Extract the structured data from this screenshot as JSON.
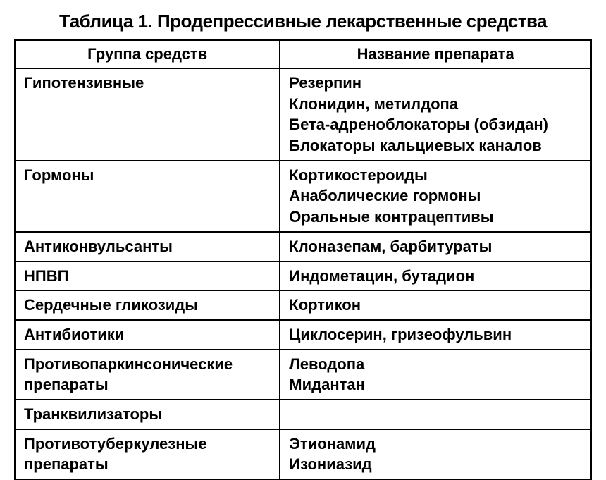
{
  "title": "Таблица 1. Продепрессивные лекарственные средства",
  "columns": [
    "Группа средств",
    "Название препарата"
  ],
  "rows": [
    {
      "group": "Гипотензивные",
      "drugs": "Резерпин\nКлонидин, метилдопа\nБета-адреноблокаторы (обзидан)\nБлокаторы кальциевых каналов"
    },
    {
      "group": "Гормоны",
      "drugs": "Кортикостероиды\nАнаболические гормоны\nОральные контрацептивы"
    },
    {
      "group": "Антиконвульсанты",
      "drugs": "Клоназепам, барбитураты"
    },
    {
      "group": "НПВП",
      "drugs": "Индометацин, бутадион"
    },
    {
      "group": "Сердечные гликозиды",
      "drugs": "Кортикон"
    },
    {
      "group": "Антибиотики",
      "drugs": "Циклосерин, гризеофульвин"
    },
    {
      "group": "Противопаркинсонические препараты",
      "drugs": "Леводопа\nМидантан"
    },
    {
      "group": "Транквилизаторы",
      "drugs": ""
    },
    {
      "group": "Противотуберкулезные препараты",
      "drugs": "Этионамид\nИзониазид"
    }
  ],
  "styling": {
    "type": "table",
    "background_color": "#ffffff",
    "border_color": "#000000",
    "border_width": 2,
    "text_color": "#000000",
    "title_fontsize": 26,
    "header_fontsize": 22,
    "cell_fontsize": 22,
    "font_weight": "bold",
    "column_widths": [
      "46%",
      "54%"
    ],
    "header_align": "center",
    "cell_align": "left"
  }
}
